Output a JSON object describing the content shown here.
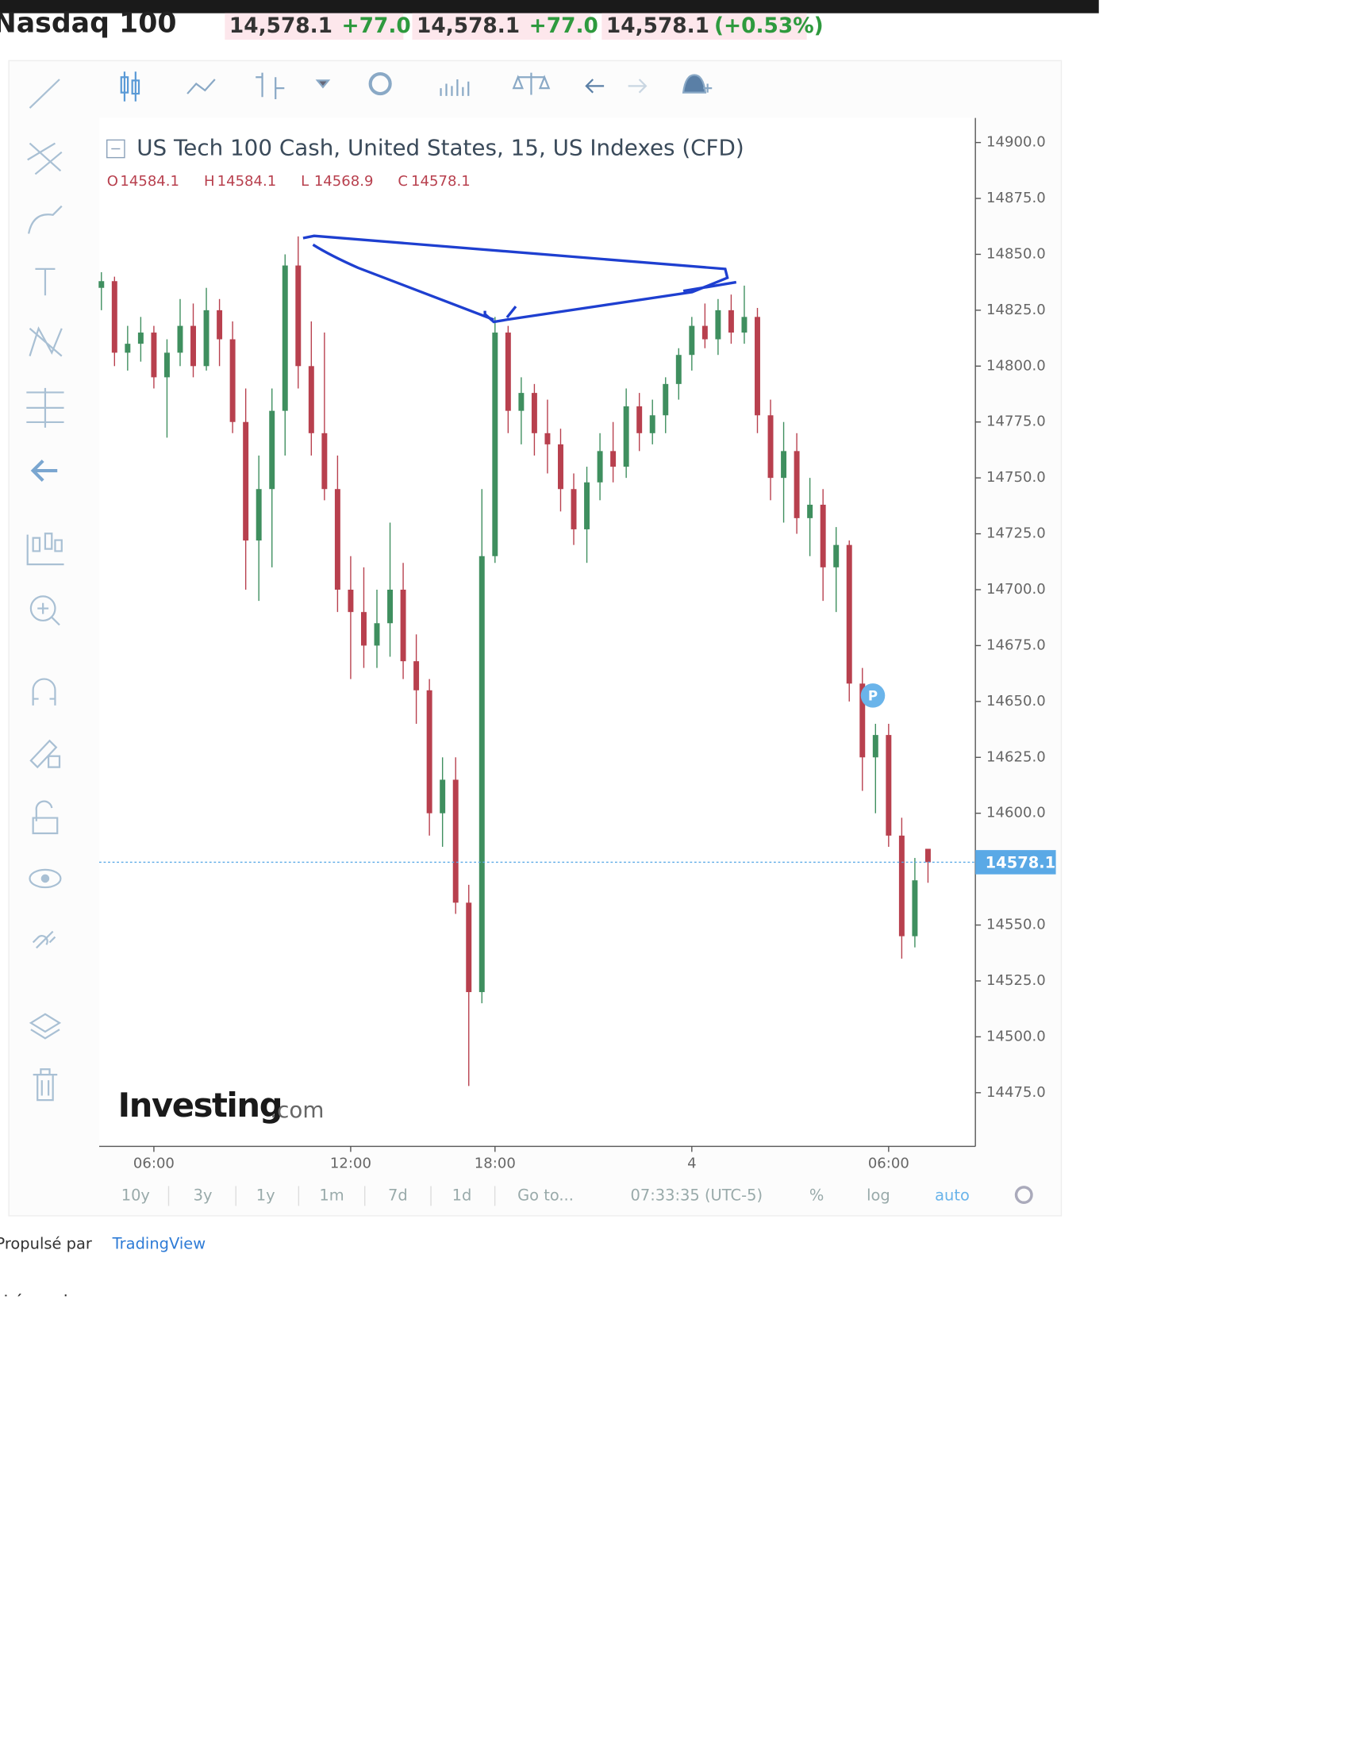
{
  "header": {
    "title": "Nasdaq 100",
    "quotes": [
      "14,578.1",
      "+77.0",
      "14,578.1",
      "+77.0",
      "14,578.1",
      "(+0.53%)"
    ]
  },
  "bottom_bar": {
    "ranges": [
      "10y",
      "3y",
      "1y",
      "1m",
      "7d",
      "1d"
    ],
    "goto": "Go to...",
    "clock": "07:33:35 (UTC-5)",
    "percent": "%",
    "log": "log",
    "auto": "auto"
  },
  "watermark": {
    "brand": "Investing",
    "suffix": ".com"
  },
  "footer": {
    "powered": "Propulsé par",
    "provider": "TradingView",
    "legend": "Légende"
  },
  "chart_data": {
    "type": "candlestick",
    "title": "US Tech 100 Cash, United States, 15, US Indexes (CFD)",
    "ohlc_prefixes": [
      "O",
      "H",
      "L",
      "C"
    ],
    "categories": [
      null,
      null,
      null,
      null,
      "06:00",
      null,
      null,
      null,
      null,
      null,
      null,
      null,
      null,
      null,
      null,
      null,
      null,
      null,
      null,
      "12:00",
      null,
      null,
      null,
      null,
      null,
      null,
      null,
      null,
      null,
      null,
      "18:00",
      null,
      null,
      null,
      null,
      null,
      null,
      null,
      null,
      null,
      null,
      null,
      null,
      null,
      null,
      "4",
      null,
      null,
      null,
      null,
      null,
      null,
      null,
      null,
      null,
      null,
      null,
      null,
      null,
      null,
      "06:00",
      null,
      null,
      null
    ],
    "open": [
      14835,
      14838,
      14806,
      14810,
      14815,
      14795,
      14806,
      14818,
      14800,
      14825,
      14812,
      14775,
      14722,
      14745,
      14780,
      14845,
      14800,
      14770,
      14745,
      14700,
      14690,
      14675,
      14685,
      14700,
      14668,
      14655,
      14600,
      14615,
      14560,
      14520,
      14715,
      14815,
      14780,
      14788,
      14770,
      14765,
      14745,
      14727,
      14748,
      14762,
      14755,
      14782,
      14770,
      14778,
      14792,
      14805,
      14818,
      14812,
      14825,
      14815,
      14822,
      14778,
      14750,
      14762,
      14732,
      14738,
      14710,
      14720,
      14658,
      14625,
      14635,
      14590,
      14545,
      14584.1
    ],
    "high": [
      14842,
      14840,
      14818,
      14822,
      14818,
      14812,
      14830,
      14828,
      14835,
      14830,
      14820,
      14790,
      14760,
      14790,
      14850,
      14858,
      14820,
      14815,
      14760,
      14715,
      14710,
      14700,
      14730,
      14712,
      14680,
      14660,
      14625,
      14625,
      14568,
      14745,
      14822,
      14818,
      14795,
      14792,
      14785,
      14772,
      14752,
      14755,
      14770,
      14775,
      14790,
      14788,
      14785,
      14795,
      14808,
      14822,
      14828,
      14830,
      14832,
      14836,
      14826,
      14785,
      14775,
      14770,
      14750,
      14745,
      14728,
      14722,
      14665,
      14640,
      14640,
      14598,
      14580,
      14584.1
    ],
    "low": [
      14825,
      14800,
      14798,
      14802,
      14790,
      14768,
      14800,
      14795,
      14798,
      14800,
      14770,
      14700,
      14695,
      14710,
      14760,
      14790,
      14760,
      14740,
      14690,
      14660,
      14665,
      14665,
      14670,
      14660,
      14640,
      14590,
      14585,
      14555,
      14478,
      14515,
      14712,
      14770,
      14765,
      14760,
      14752,
      14735,
      14720,
      14712,
      14740,
      14748,
      14750,
      14762,
      14765,
      14770,
      14785,
      14798,
      14808,
      14805,
      14810,
      14810,
      14770,
      14740,
      14730,
      14725,
      14715,
      14695,
      14690,
      14650,
      14610,
      14600,
      14585,
      14535,
      14540,
      14568.9
    ],
    "close": [
      14838,
      14806,
      14810,
      14815,
      14795,
      14806,
      14818,
      14800,
      14825,
      14812,
      14775,
      14722,
      14745,
      14780,
      14845,
      14800,
      14770,
      14745,
      14700,
      14690,
      14675,
      14685,
      14700,
      14668,
      14655,
      14600,
      14615,
      14560,
      14520,
      14715,
      14815,
      14780,
      14788,
      14770,
      14765,
      14745,
      14727,
      14748,
      14762,
      14755,
      14782,
      14770,
      14778,
      14792,
      14805,
      14818,
      14812,
      14825,
      14815,
      14822,
      14778,
      14750,
      14762,
      14732,
      14738,
      14710,
      14720,
      14658,
      14625,
      14635,
      14590,
      14545,
      14570,
      14578.1
    ],
    "up_color": "#3f8f5f",
    "down_color": "#b8404e",
    "ylim": [
      14451,
      14911
    ],
    "yticks": [
      {
        "value": 14900,
        "label": "14900.0"
      },
      {
        "value": 14875,
        "label": "14875.0"
      },
      {
        "value": 14850,
        "label": "14850.0"
      },
      {
        "value": 14825,
        "label": "14825.0"
      },
      {
        "value": 14800,
        "label": "14800.0"
      },
      {
        "value": 14775,
        "label": "14775.0"
      },
      {
        "value": 14750,
        "label": "14750.0"
      },
      {
        "value": 14725,
        "label": "14725.0"
      },
      {
        "value": 14700,
        "label": "14700.0"
      },
      {
        "value": 14675,
        "label": "14675.0"
      },
      {
        "value": 14650,
        "label": "14650.0"
      },
      {
        "value": 14625,
        "label": "14625.0"
      },
      {
        "value": 14600,
        "label": "14600.0"
      },
      {
        "value": 14575,
        "label": "14575.0"
      },
      {
        "value": 14550,
        "label": "14550.0"
      },
      {
        "value": 14525,
        "label": "14525.0"
      },
      {
        "value": 14500,
        "label": "14500.0"
      },
      {
        "value": 14475,
        "label": "14475.0"
      }
    ],
    "grid": false
  }
}
